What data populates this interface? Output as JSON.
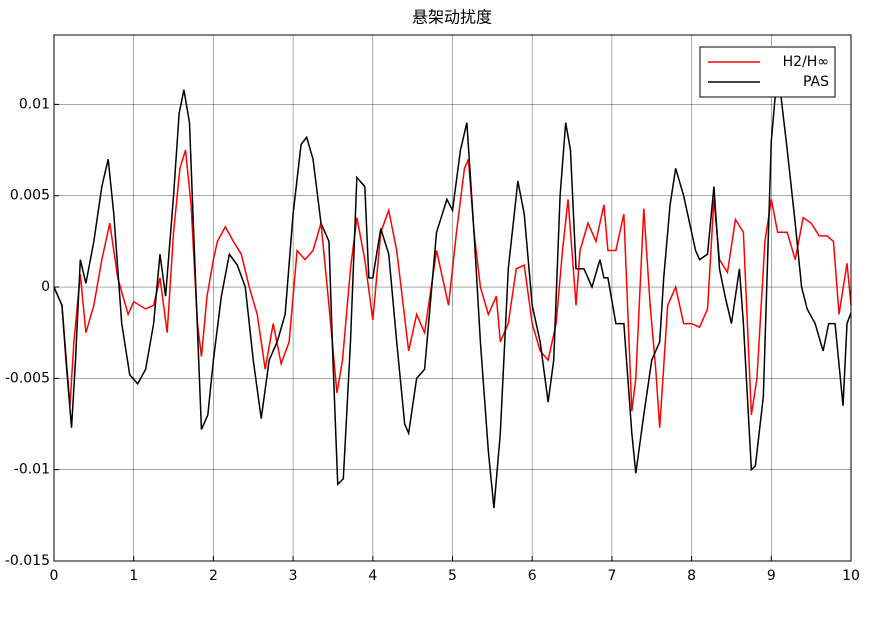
{
  "chart_data": {
    "type": "line",
    "title": "悬架动扰度",
    "xlim": [
      0,
      10
    ],
    "xticks": [
      0,
      1,
      2,
      3,
      4,
      5,
      6,
      7,
      8,
      9,
      10
    ],
    "ylim": [
      -0.015,
      0.0138
    ],
    "yticks": [
      -0.015,
      -0.01,
      -0.005,
      0,
      0.005,
      0.01
    ],
    "grid": true,
    "legend": "upper-right",
    "series": [
      {
        "name": "H2/H∞",
        "color": "#ff0000",
        "x": [
          0,
          0.1,
          0.2,
          0.25,
          0.33,
          0.4,
          0.5,
          0.6,
          0.7,
          0.8,
          0.93,
          1.0,
          1.15,
          1.25,
          1.33,
          1.42,
          1.5,
          1.58,
          1.65,
          1.72,
          1.8,
          1.85,
          1.92,
          2.0,
          2.05,
          2.15,
          2.25,
          2.35,
          2.45,
          2.55,
          2.65,
          2.75,
          2.85,
          2.95,
          3.05,
          3.15,
          3.25,
          3.35,
          3.45,
          3.55,
          3.62,
          3.72,
          3.8,
          3.9,
          4.0,
          4.1,
          4.2,
          4.3,
          4.45,
          4.55,
          4.65,
          4.8,
          4.95,
          5.05,
          5.15,
          5.2,
          5.27,
          5.35,
          5.45,
          5.55,
          5.6,
          5.7,
          5.8,
          5.9,
          6.0,
          6.1,
          6.2,
          6.3,
          6.38,
          6.45,
          6.55,
          6.6,
          6.7,
          6.8,
          6.9,
          6.95,
          7.05,
          7.15,
          7.25,
          7.3,
          7.4,
          7.48,
          7.55,
          7.6,
          7.7,
          7.8,
          7.9,
          8.0,
          8.1,
          8.2,
          8.28,
          8.35,
          8.45,
          8.55,
          8.65,
          8.75,
          8.82,
          8.92,
          9.0,
          9.08,
          9.2,
          9.3,
          9.4,
          9.5,
          9.6,
          9.7,
          9.78,
          9.85,
          9.95,
          10
        ],
        "values": [
          0,
          -0.001,
          -0.0065,
          -0.003,
          0.0007,
          -0.0025,
          -0.001,
          0.0015,
          0.0035,
          0.0005,
          -0.0015,
          -0.0008,
          -0.0012,
          -0.001,
          0.0005,
          -0.0025,
          0.003,
          0.0065,
          0.0075,
          0.0045,
          -0.002,
          -0.0038,
          -0.0005,
          0.0015,
          0.0025,
          0.0033,
          0.0025,
          0.0018,
          0,
          -0.0015,
          -0.0045,
          -0.002,
          -0.0042,
          -0.003,
          0.002,
          0.0015,
          0.002,
          0.0035,
          -0.001,
          -0.0058,
          -0.004,
          0.001,
          0.0038,
          0.0015,
          -0.0018,
          0.003,
          0.0042,
          0.002,
          -0.0035,
          -0.0015,
          -0.0025,
          0.002,
          -0.001,
          0.003,
          0.0065,
          0.007,
          0.003,
          0,
          -0.0015,
          -0.0005,
          -0.003,
          -0.002,
          0.001,
          0.0012,
          -0.002,
          -0.0035,
          -0.004,
          -0.002,
          0.002,
          0.0048,
          -0.001,
          0.002,
          0.0035,
          0.0025,
          0.0045,
          0.002,
          0.002,
          0.004,
          -0.0068,
          -0.005,
          0.0043,
          -0.001,
          -0.0045,
          -0.0077,
          -0.001,
          0,
          -0.002,
          -0.002,
          -0.0022,
          -0.0012,
          0.0048,
          0.0015,
          0.0008,
          0.0037,
          0.003,
          -0.007,
          -0.005,
          0.0025,
          0.0048,
          0.003,
          0.003,
          0.0015,
          0.0038,
          0.0035,
          0.0028,
          0.0028,
          0.0025,
          -0.0015,
          0.0013,
          -0.001
        ]
      },
      {
        "name": "PAS",
        "color": "#000000",
        "x": [
          0,
          0.1,
          0.15,
          0.22,
          0.27,
          0.33,
          0.4,
          0.5,
          0.6,
          0.68,
          0.75,
          0.85,
          0.95,
          1.05,
          1.15,
          1.25,
          1.33,
          1.4,
          1.5,
          1.57,
          1.63,
          1.7,
          1.77,
          1.85,
          1.93,
          2.0,
          2.1,
          2.2,
          2.3,
          2.4,
          2.5,
          2.6,
          2.7,
          2.8,
          2.9,
          3.0,
          3.1,
          3.17,
          3.25,
          3.35,
          3.45,
          3.5,
          3.56,
          3.63,
          3.72,
          3.8,
          3.9,
          3.95,
          4.0,
          4.1,
          4.2,
          4.3,
          4.4,
          4.45,
          4.55,
          4.65,
          4.8,
          4.93,
          5.0,
          5.1,
          5.18,
          5.27,
          5.35,
          5.45,
          5.52,
          5.6,
          5.7,
          5.82,
          5.9,
          6.0,
          6.1,
          6.2,
          6.27,
          6.35,
          6.42,
          6.48,
          6.55,
          6.65,
          6.75,
          6.85,
          6.9,
          6.95,
          7.05,
          7.15,
          7.25,
          7.3,
          7.4,
          7.5,
          7.6,
          7.65,
          7.73,
          7.8,
          7.9,
          8.05,
          8.1,
          8.2,
          8.28,
          8.35,
          8.42,
          8.5,
          8.6,
          8.65,
          8.75,
          8.8,
          8.9,
          9.0,
          9.06,
          9.12,
          9.2,
          9.3,
          9.38,
          9.45,
          9.55,
          9.65,
          9.72,
          9.8,
          9.9,
          9.95,
          10
        ],
        "values": [
          0,
          -0.001,
          -0.004,
          -0.0077,
          -0.004,
          0.0015,
          0.0002,
          0.0025,
          0.0055,
          0.007,
          0.004,
          -0.002,
          -0.0048,
          -0.0053,
          -0.0045,
          -0.002,
          0.0018,
          -0.0005,
          0.005,
          0.0095,
          0.0108,
          0.009,
          0.001,
          -0.0078,
          -0.007,
          -0.004,
          -0.0005,
          0.0018,
          0.0012,
          0,
          -0.004,
          -0.0072,
          -0.004,
          -0.003,
          -0.0015,
          0.004,
          0.0078,
          0.0082,
          0.007,
          0.0035,
          0.0025,
          -0.004,
          -0.0108,
          -0.0105,
          -0.003,
          0.006,
          0.0055,
          0.0005,
          0.0005,
          0.0032,
          0.0018,
          -0.003,
          -0.0075,
          -0.008,
          -0.005,
          -0.0045,
          0.003,
          0.0048,
          0.0042,
          0.0075,
          0.009,
          0.003,
          -0.003,
          -0.009,
          -0.0121,
          -0.008,
          0.001,
          0.0058,
          0.004,
          -0.001,
          -0.003,
          -0.0063,
          -0.004,
          0.005,
          0.009,
          0.0075,
          0.001,
          0.001,
          0,
          0.0015,
          0.0005,
          0.0005,
          -0.002,
          -0.002,
          -0.008,
          -0.0102,
          -0.007,
          -0.004,
          -0.003,
          0.0005,
          0.0045,
          0.0065,
          0.005,
          0.002,
          0.0015,
          0.0018,
          0.0055,
          0.001,
          -0.0005,
          -0.002,
          0.001,
          -0.002,
          -0.01,
          -0.0098,
          -0.006,
          0.008,
          0.011,
          0.0105,
          0.0075,
          0.0035,
          0,
          -0.0012,
          -0.002,
          -0.0035,
          -0.002,
          -0.002,
          -0.0065,
          -0.002,
          -0.0014
        ]
      }
    ]
  }
}
